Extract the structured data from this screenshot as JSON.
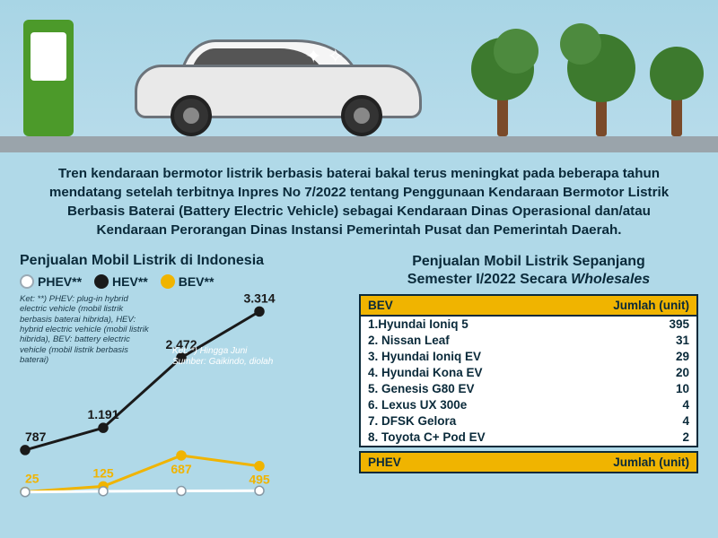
{
  "intro_text": "Tren kendaraan bermotor listrik berbasis baterai bakal terus meningkat pada beberapa tahun mendatang setelah terbitnya Inpres No 7/2022 tentang Penggunaan Kendaraan Bermotor Listrik Berbasis Baterai (Battery Electric Vehicle) sebagai Kendaraan Dinas Operasional dan/atau Kendaraan Perorangan Dinas Instansi Pemerintah Pusat dan Pemerintah Daerah.",
  "left_chart": {
    "title": "Penjualan Mobil Listrik di Indonesia",
    "legend": [
      {
        "label": "PHEV**",
        "color": "#ffffff"
      },
      {
        "label": "HEV**",
        "color": "#1a1a1a"
      },
      {
        "label": "BEV**",
        "color": "#f0b400"
      }
    ],
    "note_ket": "Ket: **) PHEV: plug-in hybrid electric vehicle (mobil listrik berbasis baterai hibrida), HEV: hybrid electric vehicle (mobil listrik hibrida), BEV: battery electric vehicle (mobil listrik berbasis baterai)",
    "note_src1": "Ket: *) Hingga Juni",
    "note_src2": "Sumber: Gaikindo, diolah",
    "type": "line",
    "x_count": 5,
    "ylim": [
      0,
      3500
    ],
    "series": {
      "HEV": {
        "color": "#1a1a1a",
        "values": [
          787,
          1191,
          2472,
          3314,
          null
        ],
        "labels": [
          "787",
          "1.191",
          "2.472",
          "3.314",
          null
        ]
      },
      "BEV": {
        "color": "#f0b400",
        "values": [
          25,
          125,
          687,
          495,
          null
        ],
        "labels": [
          "25",
          "125",
          "687",
          "495",
          null
        ]
      },
      "PHEV": {
        "color": "#ffffff",
        "values": [
          20,
          35,
          40,
          45,
          null
        ],
        "labels": [
          null,
          null,
          null,
          null,
          null
        ]
      }
    },
    "line_width": 3,
    "marker_radius": 5,
    "value_fontsize": 14,
    "value_fontweight": 800,
    "background": "#b0d9e8"
  },
  "right_table": {
    "title_line1": "Penjualan Mobil Listrik Sepanjang",
    "title_line2_a": "Semester I/2022 Secara ",
    "title_line2_b": "Wholesales",
    "header_left": "BEV",
    "header_right": "Jumlah (unit)",
    "header_bg": "#f0b400",
    "border_color": "#0a2a3a",
    "row_bg": "#ffffff",
    "text_color": "#0a2a3a",
    "rows": [
      {
        "name": "1.Hyundai Ioniq 5",
        "value": "395"
      },
      {
        "name": "2. Nissan Leaf",
        "value": "31"
      },
      {
        "name": "3. Hyundai Ioniq EV",
        "value": "29"
      },
      {
        "name": "4. Hyundai Kona EV",
        "value": "20"
      },
      {
        "name": "5. Genesis G80 EV",
        "value": "10"
      },
      {
        "name": "6. Lexus UX 300e",
        "value": "4"
      },
      {
        "name": "7. DFSK Gelora",
        "value": "4"
      },
      {
        "name": "8. Toyota C+ Pod EV",
        "value": "2"
      }
    ],
    "footer_left": "PHEV",
    "footer_right": "Jumlah (unit)"
  },
  "colors": {
    "page_bg": "#b0d9e8",
    "text_dark": "#0a2a3a",
    "accent_yellow": "#f0b400",
    "charger_green": "#4c9a2a",
    "tree_green": "#3d7a2e"
  }
}
